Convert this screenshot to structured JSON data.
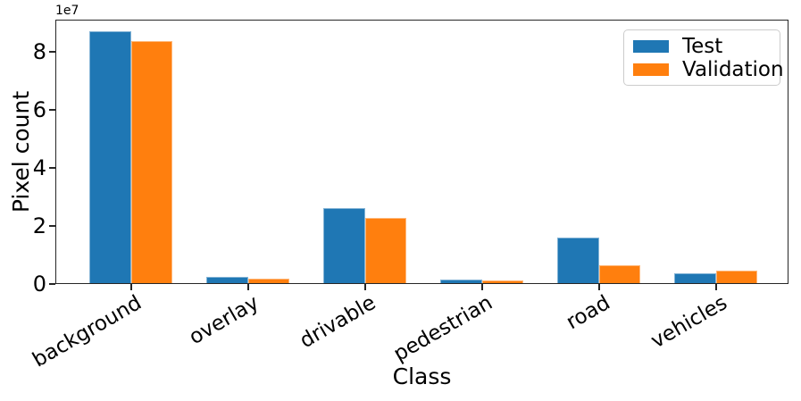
{
  "chart_data": {
    "type": "bar",
    "title": "",
    "xlabel": "Class",
    "ylabel": "Pixel count",
    "y_offset_label": "1e7",
    "categories": [
      "background",
      "overlay",
      "drivable",
      "pedestrian",
      "road",
      "vehicles"
    ],
    "series": [
      {
        "name": "Test",
        "color": "#1f77b4",
        "values": [
          87000000,
          2500000,
          26200000,
          1500000,
          16000000,
          3700000
        ]
      },
      {
        "name": "Validation",
        "color": "#ff7f0e",
        "values": [
          83500000,
          1900000,
          22800000,
          1300000,
          6500000,
          4600000
        ]
      }
    ],
    "ylim": [
      0,
      91000000
    ],
    "yticks": [
      0,
      20000000,
      40000000,
      60000000,
      80000000
    ],
    "ytick_labels": [
      "0",
      "2",
      "4",
      "6",
      "8"
    ],
    "xtick_rotation_deg": 30,
    "grid": false,
    "legend_position": "upper right",
    "plot_background": "#ffffff",
    "spine_color": "#262626"
  }
}
